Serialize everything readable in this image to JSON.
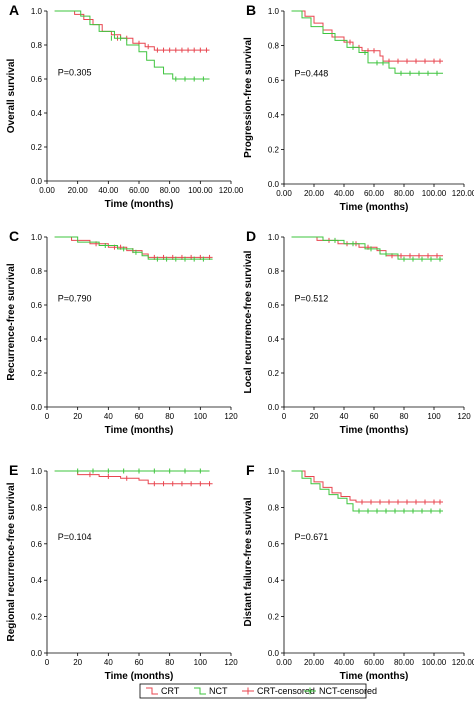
{
  "colors": {
    "crt": "#e8454f",
    "nct": "#3ec43e",
    "axis": "#000000"
  },
  "legend": {
    "items": [
      {
        "label": "CRT",
        "series": "crt",
        "kind": "line"
      },
      {
        "label": "NCT",
        "series": "nct",
        "kind": "line"
      },
      {
        "label": "CRT-censored",
        "series": "crt",
        "kind": "censor"
      },
      {
        "label": "NCT-censored",
        "series": "nct",
        "kind": "censor"
      }
    ]
  },
  "chart_data": [
    {
      "type": "line",
      "panel": "A",
      "ylabel": "Overall survival",
      "xlabel": "Time (months)",
      "p_label": "P=0.305",
      "xlim": [
        0,
        120
      ],
      "ylim": [
        0,
        1
      ],
      "xticks": [
        "0.00",
        "20.00",
        "40.00",
        "60.00",
        "80.00",
        "100.00",
        "120.00"
      ],
      "yticks": [
        "0.0",
        "0.2",
        "0.4",
        "0.6",
        "0.8",
        "1.0"
      ],
      "series": [
        {
          "key": "crt",
          "name": "CRT",
          "steps": [
            [
              5,
              1.0
            ],
            [
              18,
              0.98
            ],
            [
              24,
              0.95
            ],
            [
              30,
              0.92
            ],
            [
              36,
              0.88
            ],
            [
              42,
              0.86
            ],
            [
              48,
              0.84
            ],
            [
              56,
              0.81
            ],
            [
              64,
              0.79
            ],
            [
              70,
              0.77
            ],
            [
              106,
              0.77
            ]
          ],
          "censored": [
            [
              46,
              0.84
            ],
            [
              52,
              0.84
            ],
            [
              60,
              0.81
            ],
            [
              66,
              0.79
            ],
            [
              72,
              0.77
            ],
            [
              76,
              0.77
            ],
            [
              80,
              0.77
            ],
            [
              84,
              0.77
            ],
            [
              88,
              0.77
            ],
            [
              92,
              0.77
            ],
            [
              96,
              0.77
            ],
            [
              100,
              0.77
            ],
            [
              104,
              0.77
            ]
          ]
        },
        {
          "key": "nct",
          "name": "NCT",
          "steps": [
            [
              5,
              1.0
            ],
            [
              22,
              0.97
            ],
            [
              28,
              0.92
            ],
            [
              34,
              0.88
            ],
            [
              44,
              0.84
            ],
            [
              52,
              0.8
            ],
            [
              60,
              0.76
            ],
            [
              65,
              0.71
            ],
            [
              70,
              0.67
            ],
            [
              76,
              0.63
            ],
            [
              82,
              0.6
            ],
            [
              106,
              0.6
            ]
          ],
          "censored": [
            [
              42,
              0.84
            ],
            [
              48,
              0.84
            ],
            [
              84,
              0.6
            ],
            [
              90,
              0.6
            ],
            [
              96,
              0.6
            ],
            [
              102,
              0.6
            ]
          ]
        }
      ]
    },
    {
      "type": "line",
      "panel": "B",
      "ylabel": "Progression-free survival",
      "xlabel": "Time (months)",
      "p_label": "P=0.448",
      "xlim": [
        0,
        120
      ],
      "ylim": [
        0,
        1
      ],
      "xticks": [
        "0.00",
        "20.00",
        "40.00",
        "60.00",
        "80.00",
        "100.00",
        "120.00"
      ],
      "yticks": [
        "0.0",
        "0.2",
        "0.4",
        "0.6",
        "0.8",
        "1.0"
      ],
      "series": [
        {
          "key": "crt",
          "name": "CRT",
          "steps": [
            [
              5,
              1.0
            ],
            [
              14,
              0.97
            ],
            [
              20,
              0.93
            ],
            [
              26,
              0.89
            ],
            [
              32,
              0.85
            ],
            [
              40,
              0.82
            ],
            [
              46,
              0.79
            ],
            [
              52,
              0.77
            ],
            [
              64,
              0.74
            ],
            [
              66,
              0.71
            ],
            [
              106,
              0.71
            ]
          ],
          "censored": [
            [
              44,
              0.82
            ],
            [
              50,
              0.79
            ],
            [
              56,
              0.77
            ],
            [
              60,
              0.77
            ],
            [
              70,
              0.71
            ],
            [
              76,
              0.71
            ],
            [
              82,
              0.71
            ],
            [
              88,
              0.71
            ],
            [
              94,
              0.71
            ],
            [
              100,
              0.71
            ],
            [
              104,
              0.71
            ]
          ]
        },
        {
          "key": "nct",
          "name": "NCT",
          "steps": [
            [
              5,
              1.0
            ],
            [
              12,
              0.96
            ],
            [
              18,
              0.91
            ],
            [
              26,
              0.87
            ],
            [
              34,
              0.83
            ],
            [
              42,
              0.79
            ],
            [
              50,
              0.76
            ],
            [
              56,
              0.7
            ],
            [
              70,
              0.67
            ],
            [
              74,
              0.64
            ],
            [
              106,
              0.64
            ]
          ],
          "censored": [
            [
              46,
              0.79
            ],
            [
              54,
              0.76
            ],
            [
              62,
              0.7
            ],
            [
              66,
              0.7
            ],
            [
              78,
              0.64
            ],
            [
              84,
              0.64
            ],
            [
              90,
              0.64
            ],
            [
              96,
              0.64
            ],
            [
              102,
              0.64
            ]
          ]
        }
      ]
    },
    {
      "type": "line",
      "panel": "C",
      "ylabel": "Recurrence-free survival",
      "xlabel": "Time (months)",
      "p_label": "P=0.790",
      "xlim": [
        0,
        120
      ],
      "ylim": [
        0,
        1
      ],
      "xticks": [
        "0",
        "20",
        "40",
        "60",
        "80",
        "100",
        "120"
      ],
      "yticks": [
        "0.0",
        "0.2",
        "0.4",
        "0.6",
        "0.8",
        "1.0"
      ],
      "series": [
        {
          "key": "crt",
          "name": "CRT",
          "steps": [
            [
              5,
              1.0
            ],
            [
              16,
              0.98
            ],
            [
              28,
              0.96
            ],
            [
              40,
              0.94
            ],
            [
              52,
              0.92
            ],
            [
              62,
              0.9
            ],
            [
              66,
              0.88
            ],
            [
              108,
              0.88
            ]
          ],
          "censored": [
            [
              32,
              0.96
            ],
            [
              44,
              0.94
            ],
            [
              48,
              0.94
            ],
            [
              56,
              0.92
            ],
            [
              70,
              0.88
            ],
            [
              76,
              0.88
            ],
            [
              82,
              0.88
            ],
            [
              88,
              0.88
            ],
            [
              94,
              0.88
            ],
            [
              100,
              0.88
            ],
            [
              106,
              0.88
            ]
          ]
        },
        {
          "key": "nct",
          "name": "NCT",
          "steps": [
            [
              5,
              1.0
            ],
            [
              20,
              0.97
            ],
            [
              34,
              0.95
            ],
            [
              46,
              0.93
            ],
            [
              56,
              0.91
            ],
            [
              62,
              0.89
            ],
            [
              66,
              0.87
            ],
            [
              108,
              0.87
            ]
          ],
          "censored": [
            [
              38,
              0.95
            ],
            [
              50,
              0.93
            ],
            [
              58,
              0.91
            ],
            [
              72,
              0.87
            ],
            [
              78,
              0.87
            ],
            [
              84,
              0.87
            ],
            [
              90,
              0.87
            ],
            [
              96,
              0.87
            ],
            [
              102,
              0.87
            ]
          ]
        }
      ]
    },
    {
      "type": "line",
      "panel": "D",
      "ylabel": "Local recurrence-free survival",
      "xlabel": "Time (months)",
      "p_label": "P=0.512",
      "xlim": [
        0,
        120
      ],
      "ylim": [
        0,
        1
      ],
      "xticks": [
        "0",
        "20",
        "40",
        "60",
        "80",
        "100",
        "120"
      ],
      "yticks": [
        "0.0",
        "0.2",
        "0.4",
        "0.6",
        "0.8",
        "1.0"
      ],
      "series": [
        {
          "key": "crt",
          "name": "CRT",
          "steps": [
            [
              5,
              1.0
            ],
            [
              22,
              0.98
            ],
            [
              36,
              0.96
            ],
            [
              50,
              0.94
            ],
            [
              62,
              0.92
            ],
            [
              68,
              0.89
            ],
            [
              106,
              0.89
            ]
          ],
          "censored": [
            [
              30,
              0.98
            ],
            [
              42,
              0.96
            ],
            [
              48,
              0.96
            ],
            [
              56,
              0.94
            ],
            [
              72,
              0.89
            ],
            [
              78,
              0.89
            ],
            [
              84,
              0.89
            ],
            [
              90,
              0.89
            ],
            [
              96,
              0.89
            ],
            [
              102,
              0.89
            ]
          ]
        },
        {
          "key": "nct",
          "name": "NCT",
          "steps": [
            [
              5,
              1.0
            ],
            [
              26,
              0.98
            ],
            [
              40,
              0.96
            ],
            [
              54,
              0.93
            ],
            [
              64,
              0.9
            ],
            [
              76,
              0.87
            ],
            [
              106,
              0.87
            ]
          ],
          "censored": [
            [
              34,
              0.98
            ],
            [
              46,
              0.96
            ],
            [
              58,
              0.93
            ],
            [
              68,
              0.9
            ],
            [
              80,
              0.87
            ],
            [
              86,
              0.87
            ],
            [
              92,
              0.87
            ],
            [
              98,
              0.87
            ],
            [
              104,
              0.87
            ]
          ]
        }
      ]
    },
    {
      "type": "line",
      "panel": "E",
      "ylabel": "Regional recurrence-free survival",
      "xlabel": "Time (months)",
      "p_label": "P=0.104",
      "xlim": [
        0,
        120
      ],
      "ylim": [
        0,
        1
      ],
      "xticks": [
        "0",
        "20",
        "40",
        "60",
        "80",
        "100",
        "120"
      ],
      "yticks": [
        "0.0",
        "0.2",
        "0.4",
        "0.6",
        "0.8",
        "1.0"
      ],
      "series": [
        {
          "key": "crt",
          "name": "CRT",
          "steps": [
            [
              5,
              1.0
            ],
            [
              20,
              0.98
            ],
            [
              34,
              0.97
            ],
            [
              48,
              0.96
            ],
            [
              60,
              0.95
            ],
            [
              66,
              0.93
            ],
            [
              108,
              0.93
            ]
          ],
          "censored": [
            [
              28,
              0.98
            ],
            [
              40,
              0.97
            ],
            [
              52,
              0.96
            ],
            [
              70,
              0.93
            ],
            [
              76,
              0.93
            ],
            [
              82,
              0.93
            ],
            [
              88,
              0.93
            ],
            [
              94,
              0.93
            ],
            [
              100,
              0.93
            ],
            [
              106,
              0.93
            ]
          ]
        },
        {
          "key": "nct",
          "name": "NCT",
          "steps": [
            [
              5,
              1.0
            ],
            [
              106,
              1.0
            ]
          ],
          "censored": [
            [
              20,
              1.0
            ],
            [
              30,
              1.0
            ],
            [
              40,
              1.0
            ],
            [
              50,
              1.0
            ],
            [
              60,
              1.0
            ],
            [
              70,
              1.0
            ],
            [
              80,
              1.0
            ],
            [
              90,
              1.0
            ],
            [
              100,
              1.0
            ]
          ]
        }
      ]
    },
    {
      "type": "line",
      "panel": "F",
      "ylabel": "Distant failure-free survival",
      "xlabel": "Time (months)",
      "p_label": "P=0.671",
      "xlim": [
        0,
        120
      ],
      "ylim": [
        0,
        1
      ],
      "xticks": [
        "0.00",
        "20.00",
        "40.00",
        "60.00",
        "80.00",
        "100.00",
        "120.00"
      ],
      "yticks": [
        "0.0",
        "0.2",
        "0.4",
        "0.6",
        "0.8",
        "1.0"
      ],
      "series": [
        {
          "key": "crt",
          "name": "CRT",
          "steps": [
            [
              5,
              1.0
            ],
            [
              14,
              0.97
            ],
            [
              20,
              0.94
            ],
            [
              26,
              0.91
            ],
            [
              32,
              0.88
            ],
            [
              38,
              0.86
            ],
            [
              44,
              0.84
            ],
            [
              48,
              0.83
            ],
            [
              106,
              0.83
            ]
          ],
          "censored": [
            [
              52,
              0.83
            ],
            [
              58,
              0.83
            ],
            [
              64,
              0.83
            ],
            [
              70,
              0.83
            ],
            [
              76,
              0.83
            ],
            [
              82,
              0.83
            ],
            [
              88,
              0.83
            ],
            [
              94,
              0.83
            ],
            [
              100,
              0.83
            ],
            [
              104,
              0.83
            ]
          ]
        },
        {
          "key": "nct",
          "name": "NCT",
          "steps": [
            [
              5,
              1.0
            ],
            [
              12,
              0.96
            ],
            [
              18,
              0.93
            ],
            [
              24,
              0.9
            ],
            [
              30,
              0.87
            ],
            [
              36,
              0.85
            ],
            [
              42,
              0.82
            ],
            [
              46,
              0.78
            ],
            [
              106,
              0.78
            ]
          ],
          "censored": [
            [
              50,
              0.78
            ],
            [
              56,
              0.78
            ],
            [
              62,
              0.78
            ],
            [
              68,
              0.78
            ],
            [
              74,
              0.78
            ],
            [
              80,
              0.78
            ],
            [
              86,
              0.78
            ],
            [
              92,
              0.78
            ],
            [
              98,
              0.78
            ],
            [
              104,
              0.78
            ]
          ]
        }
      ]
    }
  ]
}
